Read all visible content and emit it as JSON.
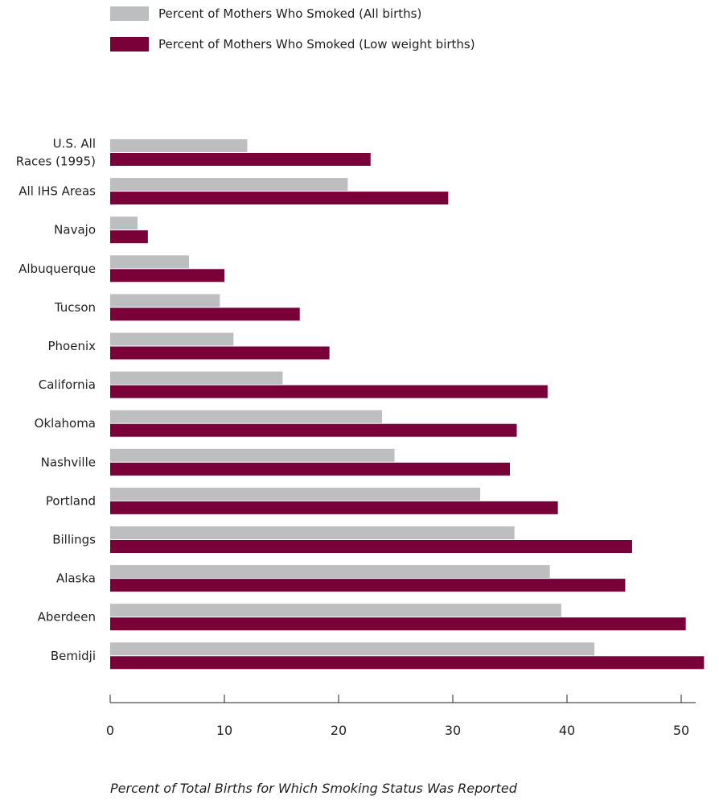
{
  "chart_data": {
    "type": "bar",
    "orientation": "horizontal",
    "title": "",
    "xlabel": "Percent of Total Births for Which Smoking Status Was Reported",
    "ylabel": "",
    "xlim": [
      0,
      52
    ],
    "xticks": [
      0,
      10,
      20,
      30,
      40,
      50
    ],
    "grid": false,
    "legend_position": "top-left",
    "categories": [
      [
        "U.S. All",
        "Races (1995)"
      ],
      [
        "All IHS Areas"
      ],
      [
        "Navajo"
      ],
      [
        "Albuquerque"
      ],
      [
        "Tucson"
      ],
      [
        "Phoenix"
      ],
      [
        "California"
      ],
      [
        "Oklahoma"
      ],
      [
        "Nashville"
      ],
      [
        "Portland"
      ],
      [
        "Billings"
      ],
      [
        "Alaska"
      ],
      [
        "Aberdeen"
      ],
      [
        "Bemidji"
      ]
    ],
    "series": [
      {
        "name": "Percent of Mothers Who Smoked (All births)",
        "color": "#bcbec0",
        "values": [
          12.0,
          20.8,
          2.4,
          6.9,
          9.6,
          10.8,
          15.1,
          23.8,
          24.9,
          32.4,
          35.4,
          38.5,
          39.5,
          42.4
        ]
      },
      {
        "name": "Percent of Mothers Who Smoked (Low weight births)",
        "color": "#7a0039",
        "values": [
          22.8,
          29.6,
          3.3,
          10.0,
          16.6,
          19.2,
          38.3,
          35.6,
          35.0,
          39.2,
          45.7,
          45.1,
          50.4,
          52.0
        ]
      }
    ]
  }
}
